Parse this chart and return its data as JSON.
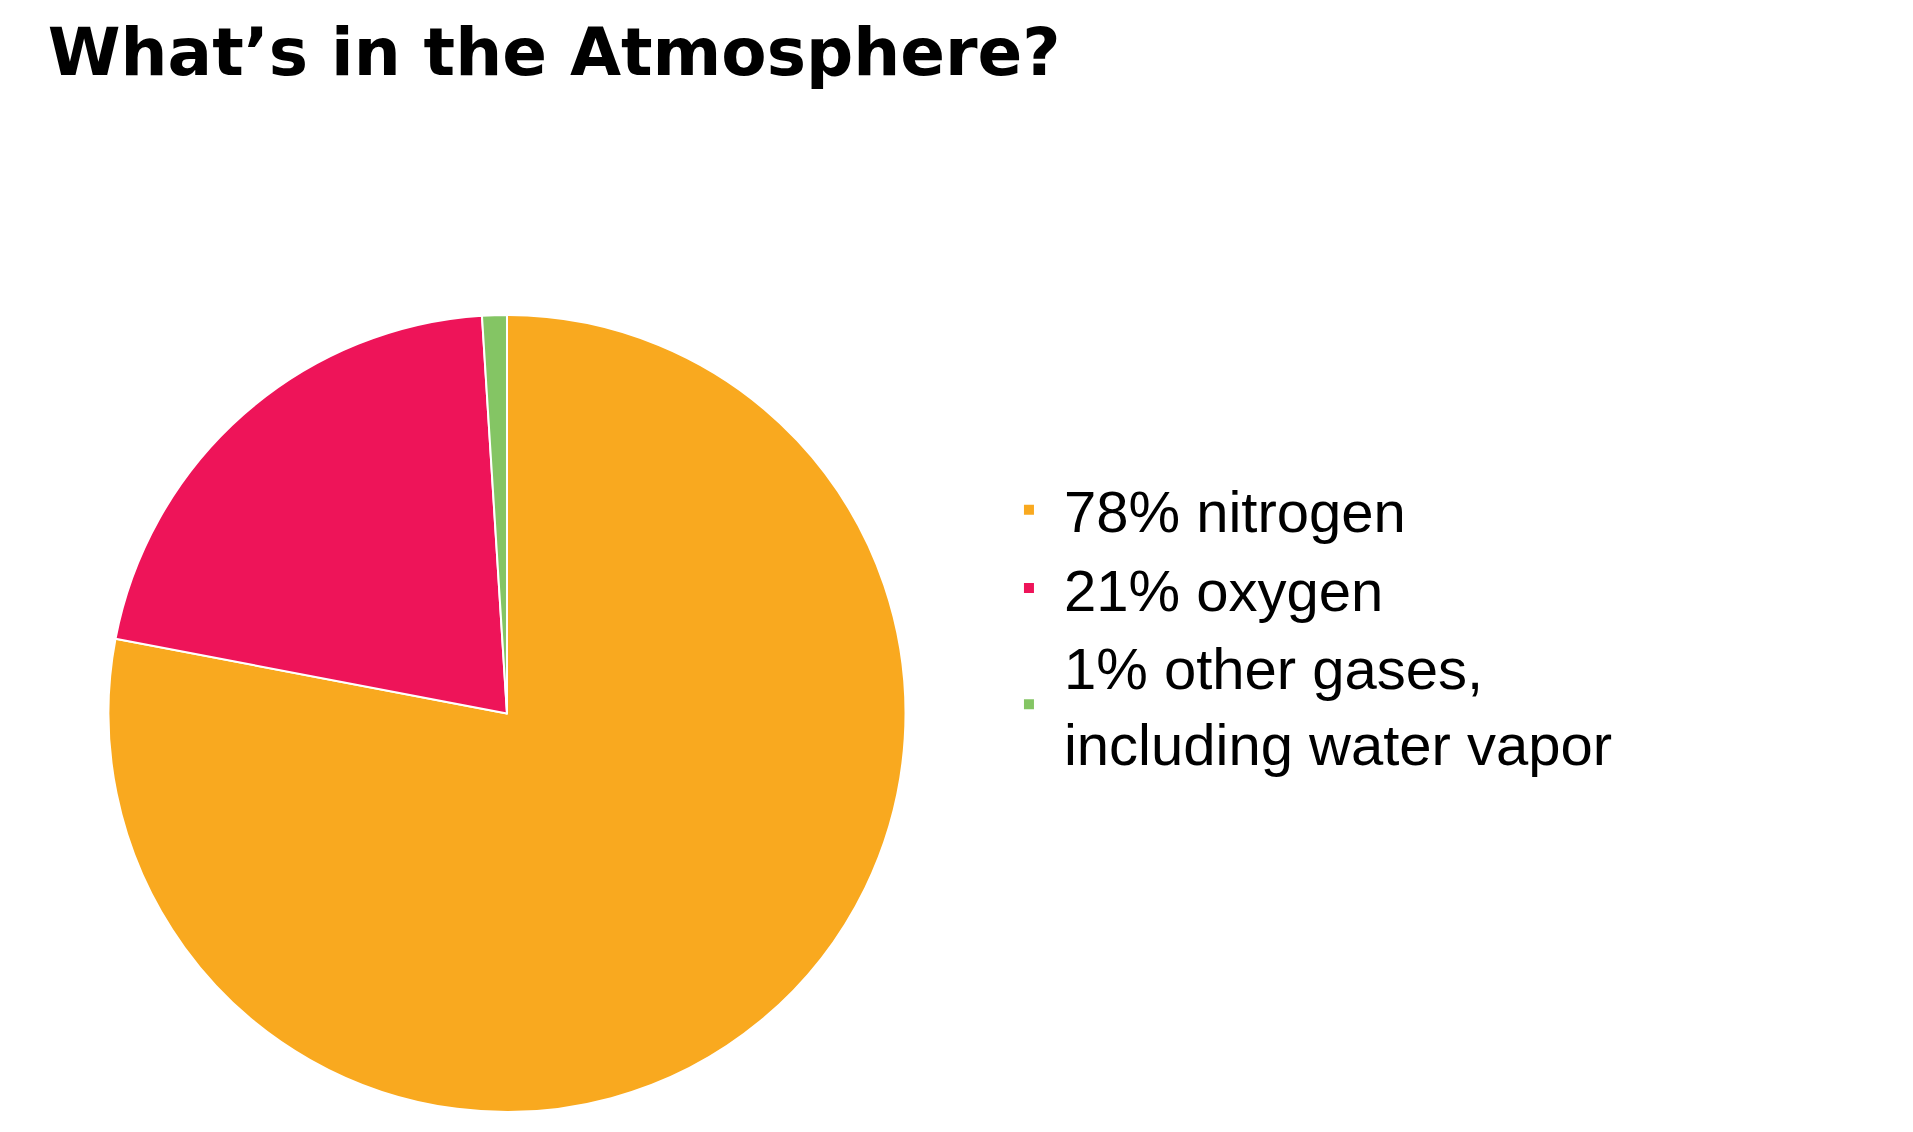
{
  "chart_data": {
    "type": "pie",
    "title": "What’s in the Atmosphere?",
    "categories": [
      "78% nitrogen",
      "21% oxygen",
      "1% other gases,\nincluding water vapor"
    ],
    "values": [
      78,
      21,
      1
    ],
    "colors": [
      "#f9a91f",
      "#ee1459",
      "#84c564"
    ],
    "legend": "right"
  }
}
